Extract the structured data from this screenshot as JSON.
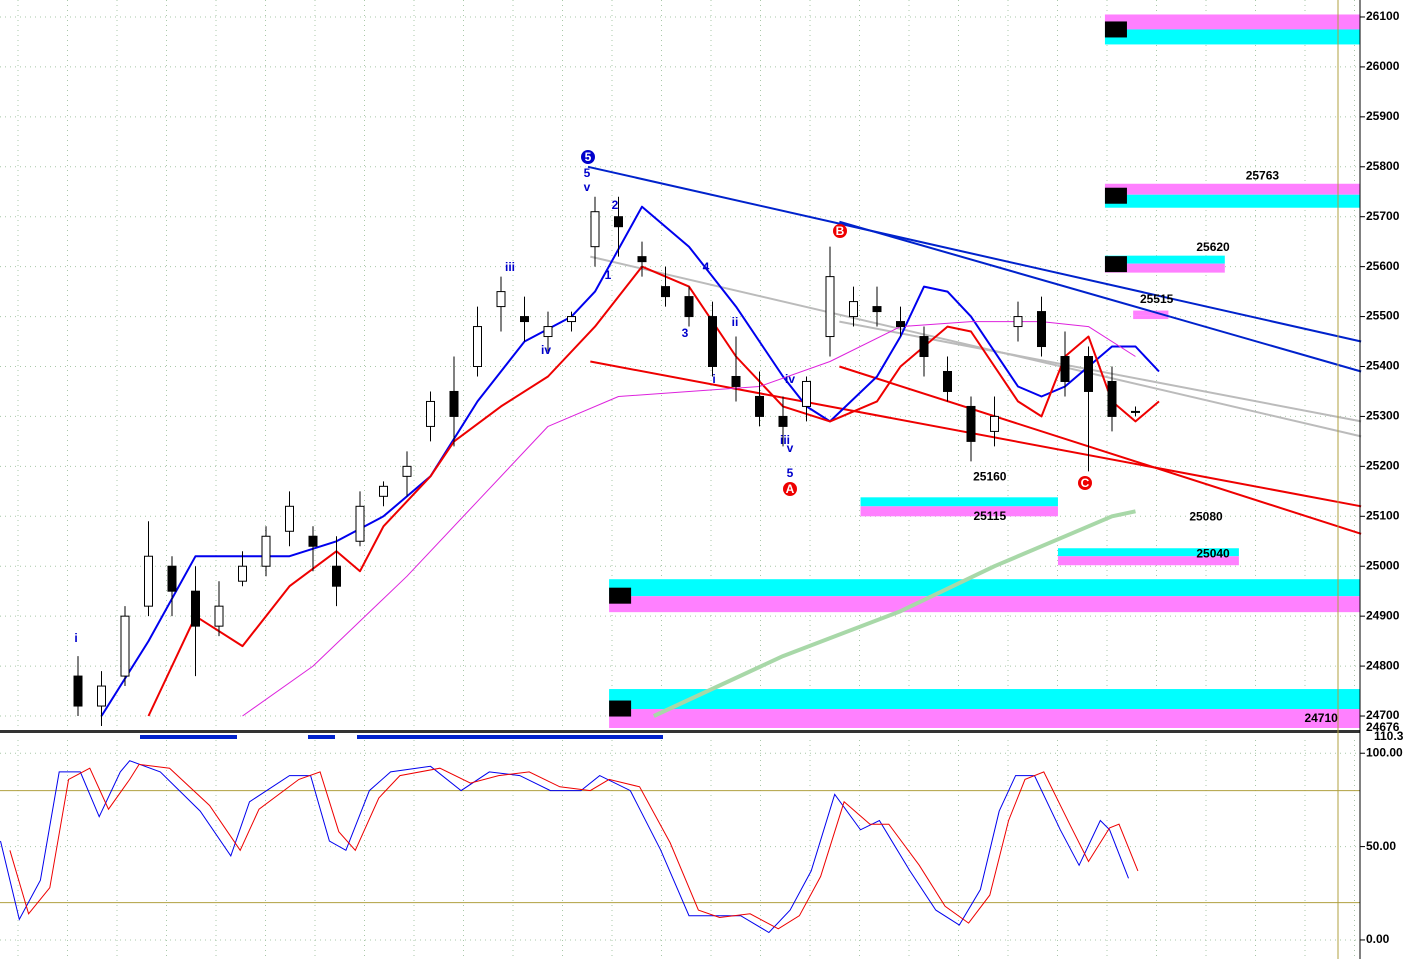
{
  "chart_data": [
    {
      "type": "candlestick",
      "open": [
        24780,
        24720,
        24780,
        24920,
        25000,
        24950,
        24880,
        24970,
        25000,
        25070,
        25060,
        25000,
        25050,
        25140,
        25180,
        25280,
        25350,
        25400,
        25520,
        25500,
        25460,
        25490,
        25640,
        25700,
        25620,
        25560,
        25540,
        25500,
        25380,
        25340,
        25300,
        25320,
        25460,
        25500,
        25520,
        25490,
        25460,
        25390,
        25320,
        25270,
        25480,
        25510,
        25420,
        25420,
        25370,
        25310
      ],
      "high": [
        24820,
        24790,
        24920,
        25090,
        25020,
        25000,
        24970,
        25030,
        25080,
        25150,
        25080,
        25060,
        25150,
        25170,
        25230,
        25350,
        25420,
        25520,
        25580,
        25540,
        25510,
        25510,
        25740,
        25740,
        25650,
        25600,
        25560,
        25530,
        25460,
        25390,
        25340,
        25380,
        25640,
        25560,
        25560,
        25520,
        25480,
        25420,
        25340,
        25340,
        25530,
        25540,
        25470,
        25440,
        25400,
        25320
      ],
      "low": [
        24700,
        24680,
        24760,
        24900,
        24900,
        24780,
        24860,
        24960,
        24980,
        25040,
        24990,
        24920,
        25040,
        25120,
        25140,
        25250,
        25240,
        25380,
        25470,
        25450,
        25430,
        25470,
        25600,
        25620,
        25580,
        25520,
        25480,
        25380,
        25330,
        25280,
        25240,
        25290,
        25420,
        25480,
        25480,
        25460,
        25380,
        25330,
        25210,
        25240,
        25450,
        25420,
        25340,
        25190,
        25270,
        25300
      ],
      "close": [
        24720,
        24760,
        24900,
        25020,
        24950,
        24880,
        24920,
        25000,
        25060,
        25120,
        25040,
        24960,
        25120,
        25160,
        25200,
        25330,
        25300,
        25480,
        25550,
        25490,
        25480,
        25500,
        25710,
        25680,
        25610,
        25540,
        25500,
        25400,
        25360,
        25300,
        25280,
        25370,
        25580,
        25530,
        25510,
        25480,
        25420,
        25350,
        25250,
        25300,
        25500,
        25440,
        25370,
        25350,
        25300,
        25310
      ],
      "up_color": "#ffffff",
      "down_color": "#000000",
      "ylim": [
        24676,
        26134
      ],
      "yticks": [
        24700,
        24800,
        24900,
        25000,
        25100,
        25200,
        25300,
        25400,
        25500,
        25600,
        25700,
        25800,
        25900,
        26000,
        26100
      ],
      "grid": true,
      "overlays": [
        {
          "color": "#0000ee",
          "width": 2,
          "x": [
            1,
            3,
            5,
            7,
            9,
            11,
            13,
            15,
            17,
            19,
            21,
            22,
            24,
            26,
            28,
            30,
            31,
            32,
            34,
            35,
            36,
            37,
            38,
            40,
            41,
            42,
            44,
            45,
            46
          ],
          "values": [
            24700,
            24850,
            25020,
            25020,
            25020,
            25050,
            25100,
            25180,
            25330,
            25450,
            25500,
            25550,
            25720,
            25640,
            25520,
            25380,
            25320,
            25290,
            25380,
            25460,
            25560,
            25550,
            25500,
            25360,
            25340,
            25360,
            25440,
            25440,
            25390
          ]
        },
        {
          "color": "#ee0000",
          "width": 2,
          "x": [
            3,
            5,
            7,
            9,
            11,
            12,
            13,
            15,
            16,
            18,
            20,
            22,
            24,
            26,
            28,
            30,
            32,
            34,
            35,
            37,
            38,
            40,
            41,
            42,
            43,
            44,
            45,
            46
          ],
          "values": [
            24700,
            24900,
            24840,
            24960,
            25030,
            24990,
            25080,
            25180,
            25250,
            25320,
            25380,
            25480,
            25600,
            25560,
            25420,
            25320,
            25290,
            25330,
            25400,
            25480,
            25470,
            25330,
            25300,
            25420,
            25460,
            25330,
            25290,
            25330
          ]
        },
        {
          "color": "#dd22dd",
          "width": 1,
          "x": [
            7,
            10,
            14,
            17,
            20,
            23,
            26,
            29,
            32,
            35,
            38,
            41,
            43,
            45
          ],
          "values": [
            24700,
            24800,
            24980,
            25130,
            25280,
            25340,
            25350,
            25360,
            25410,
            25480,
            25490,
            25490,
            25480,
            25420
          ]
        },
        {
          "color": "#a8d8a8",
          "width": 4,
          "x": [
            24.5,
            30,
            35,
            39,
            42,
            44,
            45
          ],
          "values": [
            24700,
            24820,
            24910,
            25000,
            25060,
            25100,
            25110
          ]
        }
      ],
      "trendlines": [
        {
          "color": "#0022cc",
          "x": [
            21.7,
            54.6
          ],
          "values": [
            25800,
            25450
          ]
        },
        {
          "color": "#0022cc",
          "x": [
            32.4,
            54.6
          ],
          "values": [
            25690,
            25390
          ]
        },
        {
          "color": "#ee0000",
          "x": [
            21.8,
            54.6
          ],
          "values": [
            25410,
            25120
          ]
        },
        {
          "color": "#ee0000",
          "x": [
            32.4,
            54.6
          ],
          "values": [
            25400,
            25065
          ]
        },
        {
          "color": "#bbbbbb",
          "x": [
            21.8,
            54.6
          ],
          "values": [
            25620,
            25260
          ]
        },
        {
          "color": "#bbbbbb",
          "x": [
            32.4,
            54.6
          ],
          "values": [
            25490,
            25290
          ]
        }
      ],
      "zones": [
        {
          "x": [
            43.7,
            54.6
          ],
          "levels": [
            26105,
            26075,
            26045
          ],
          "colors": [
            "#ff80ff",
            "#00ffff"
          ],
          "marker": true
        },
        {
          "x": [
            43.7,
            54.6
          ],
          "levels": [
            25766,
            25744,
            25718
          ],
          "colors": [
            "#ff80ff",
            "#00ffff"
          ],
          "marker": true
        },
        {
          "x": [
            43.7,
            48.8
          ],
          "levels": [
            25622,
            25606,
            25588
          ],
          "colors": [
            "#00ffff",
            "#ff80ff"
          ],
          "marker": true
        },
        {
          "x": [
            44.9,
            46.4
          ],
          "levels": [
            25512,
            25503,
            25495
          ],
          "colors": [
            "#ff80ff",
            "#ff80ff"
          ],
          "marker": false
        },
        {
          "x": [
            33.3,
            41.7
          ],
          "levels": [
            25138,
            25120,
            25100
          ],
          "colors": [
            "#00ffff",
            "#ff80ff"
          ],
          "marker": false
        },
        {
          "x": [
            41.7,
            49.4
          ],
          "levels": [
            25036,
            25020,
            25002
          ],
          "colors": [
            "#00ffff",
            "#ff80ff"
          ],
          "marker": false
        },
        {
          "x": [
            22.6,
            54.6
          ],
          "levels": [
            24974,
            24940,
            24908
          ],
          "colors": [
            "#00ffff",
            "#ff80ff"
          ],
          "marker": true
        },
        {
          "x": [
            22.6,
            54.6
          ],
          "levels": [
            24754,
            24714,
            24676
          ],
          "colors": [
            "#00ffff",
            "#ff80ff"
          ],
          "marker": true
        }
      ],
      "level_labels": [
        {
          "x": 50.4,
          "value": 25763,
          "side": "above"
        },
        {
          "x": 48.3,
          "value": 25620,
          "side": "above"
        },
        {
          "x": 45.9,
          "value": 25515,
          "side": "above"
        },
        {
          "x": 38.8,
          "value": 25160,
          "side": "above"
        },
        {
          "x": 38.8,
          "value": 25115,
          "side": "below"
        },
        {
          "x": 48.0,
          "value": 25080,
          "side": "above"
        },
        {
          "x": 48.3,
          "value": 25040,
          "side": "below"
        },
        {
          "x": 52.9,
          "value": 24710,
          "side": "below"
        }
      ],
      "wave_labels": [
        {
          "text": "5",
          "color": "#0000cc"
        },
        {
          "text": "5",
          "color": "#0000cc"
        },
        {
          "text": "v",
          "color": "#0000cc"
        },
        {
          "text": "2",
          "color": "#0000cc"
        },
        {
          "text": "1",
          "color": "#0000cc"
        },
        {
          "text": "iii",
          "color": "#0000cc"
        },
        {
          "text": "iv",
          "color": "#0000cc"
        },
        {
          "text": "i",
          "color": "#0000cc"
        },
        {
          "text": "3",
          "color": "#0000cc"
        },
        {
          "text": "4",
          "color": "#0000cc"
        },
        {
          "text": "ii",
          "color": "#0000cc"
        },
        {
          "text": "i",
          "color": "#0000cc"
        },
        {
          "text": "iv",
          "color": "#0000cc"
        },
        {
          "text": "iii",
          "color": "#0000cc"
        },
        {
          "text": "v",
          "color": "#0000cc"
        },
        {
          "text": "5",
          "color": "#0000cc"
        },
        {
          "text": "A",
          "color": "#ee0000"
        },
        {
          "text": "B",
          "color": "#ee0000"
        },
        {
          "text": "C",
          "color": "#ee0000"
        }
      ]
    },
    {
      "type": "line",
      "series": [
        {
          "color": "#0000ee",
          "x": [
            -3.3,
            -2.5,
            -1.6,
            -0.8,
            0.1,
            0.9,
            1.8,
            2.2,
            3.5,
            5.2,
            6.5,
            7.3,
            9.0,
            9.9,
            10.7,
            11.4,
            12.4,
            13.3,
            15.0,
            16.3,
            17.5,
            18.8,
            20.1,
            21.4,
            22.2,
            23.5,
            24.8,
            26.0,
            26.9,
            28.2,
            29.4,
            30.3,
            31.2,
            32.2,
            33.3,
            34.1,
            35.4,
            36.5,
            37.5,
            38.4,
            39.2,
            39.9,
            40.7,
            41.8,
            42.6,
            43.5,
            43.9,
            44.7
          ],
          "values": [
            53,
            11,
            32,
            90,
            90,
            66,
            90,
            96,
            90,
            69,
            45,
            74,
            88,
            88,
            53,
            48,
            80,
            90,
            93,
            80,
            90,
            88,
            80,
            80,
            88,
            80,
            48,
            13,
            13,
            13,
            4,
            16,
            37,
            78,
            59,
            64,
            37,
            16,
            8,
            27,
            69,
            88,
            88,
            59,
            40,
            64,
            59,
            33
          ]
        },
        {
          "color": "#ee0000",
          "x": [
            -2.9,
            -2.1,
            -1.2,
            -0.4,
            0.5,
            1.3,
            2.2,
            2.6,
            3.9,
            5.6,
            6.9,
            7.7,
            9.4,
            10.3,
            11.1,
            11.8,
            12.8,
            13.7,
            15.4,
            16.7,
            17.9,
            19.2,
            20.5,
            21.8,
            22.6,
            23.9,
            25.2,
            26.4,
            27.3,
            28.6,
            29.8,
            30.7,
            31.6,
            32.6,
            33.7,
            34.5,
            35.8,
            36.9,
            37.9,
            38.8,
            39.6,
            40.3,
            41.1,
            42.2,
            43.0,
            43.9,
            44.3,
            45.1
          ],
          "values": [
            48,
            14,
            28,
            86,
            92,
            70,
            86,
            94,
            92,
            72,
            48,
            70,
            86,
            90,
            58,
            48,
            76,
            88,
            92,
            84,
            88,
            90,
            82,
            80,
            86,
            82,
            52,
            16,
            12,
            14,
            6,
            13,
            34,
            74,
            62,
            62,
            40,
            18,
            9,
            24,
            64,
            86,
            90,
            62,
            42,
            60,
            62,
            37
          ]
        }
      ],
      "ylim": [
        -10.2,
        110.3
      ],
      "yticks": [
        {
          "value": 0,
          "label": "0.00"
        },
        {
          "value": 50,
          "label": "50.00"
        },
        {
          "value": 100,
          "label": "100.00"
        }
      ],
      "levels": [
        20,
        80
      ],
      "grid": true
    }
  ]
}
